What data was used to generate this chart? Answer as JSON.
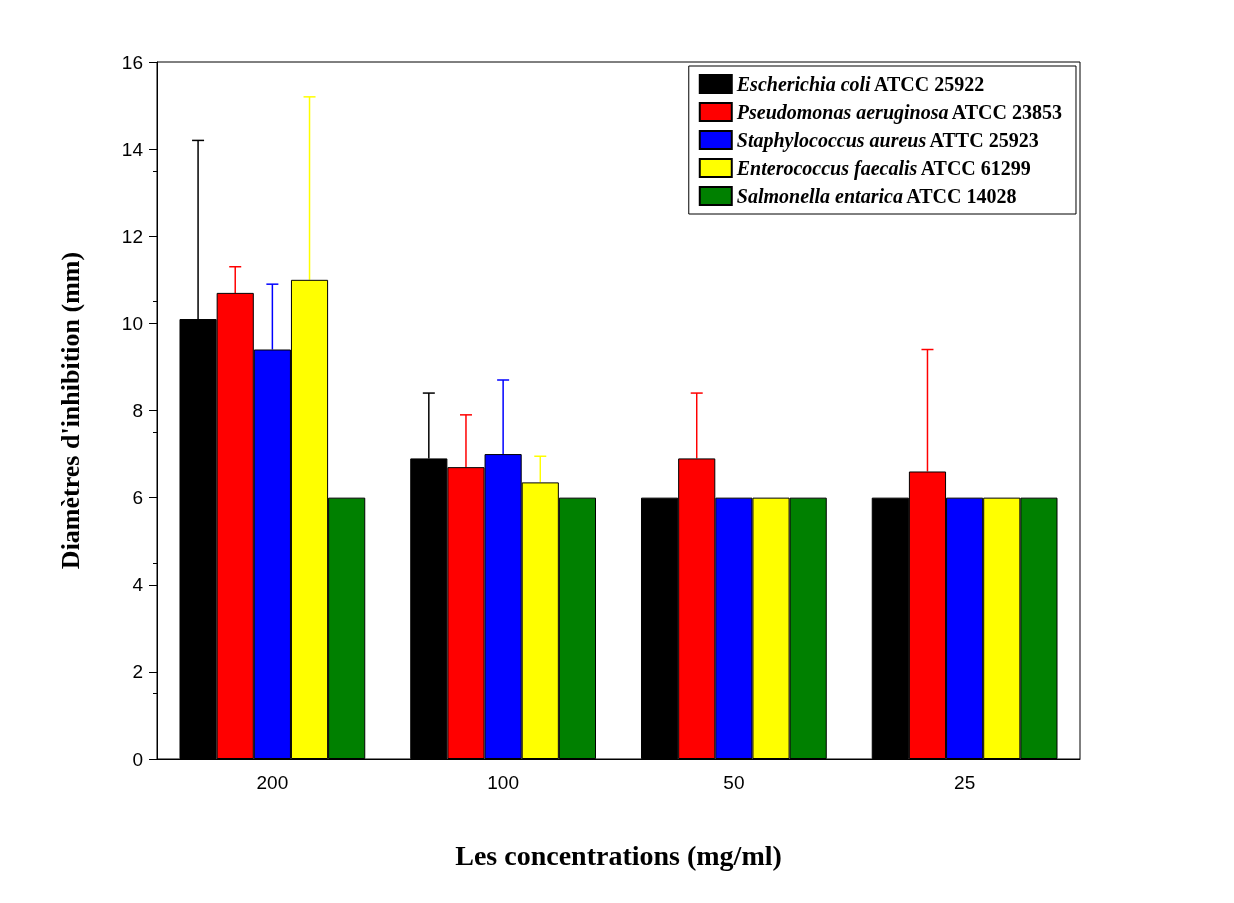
{
  "chart_data": {
    "type": "bar",
    "xlabel": "Les concentrations (mg/ml)",
    "ylabel": "Diamètres d'inhibition (mm)",
    "categories": [
      "200",
      "100",
      "50",
      "25"
    ],
    "ylim": [
      0,
      16
    ],
    "yticks": [
      0,
      2,
      4,
      6,
      8,
      10,
      12,
      14,
      16
    ],
    "legend": "top right",
    "grid": false,
    "series": [
      {
        "name": "Escherichia coli ATCC 25922",
        "color": "#000000",
        "values": [
          10.1,
          6.9,
          6.0,
          6.0
        ],
        "errors": [
          4.1,
          1.5,
          null,
          null
        ]
      },
      {
        "name": "Pseudomonas aeruginosa ATCC 23853",
        "color": "#ff0000",
        "values": [
          10.7,
          6.7,
          6.9,
          6.6
        ],
        "errors": [
          0.6,
          1.2,
          1.5,
          2.8
        ]
      },
      {
        "name": "Staphylococcus aureus ATTC 25923",
        "color": "#0000ff",
        "values": [
          9.4,
          7.0,
          6.0,
          6.0
        ],
        "errors": [
          1.5,
          1.7,
          null,
          null
        ]
      },
      {
        "name": "Enterococcus faecalis ATCC 61299",
        "color": "#ffff00",
        "values": [
          11.0,
          6.35,
          6.0,
          6.0
        ],
        "errors": [
          4.2,
          0.6,
          null,
          null
        ]
      },
      {
        "name": "Salmonella entarica ATCC 14028",
        "color": "#008000",
        "values": [
          6.0,
          6.0,
          6.0,
          6.0
        ],
        "errors": [
          null,
          null,
          null,
          null
        ]
      }
    ]
  }
}
